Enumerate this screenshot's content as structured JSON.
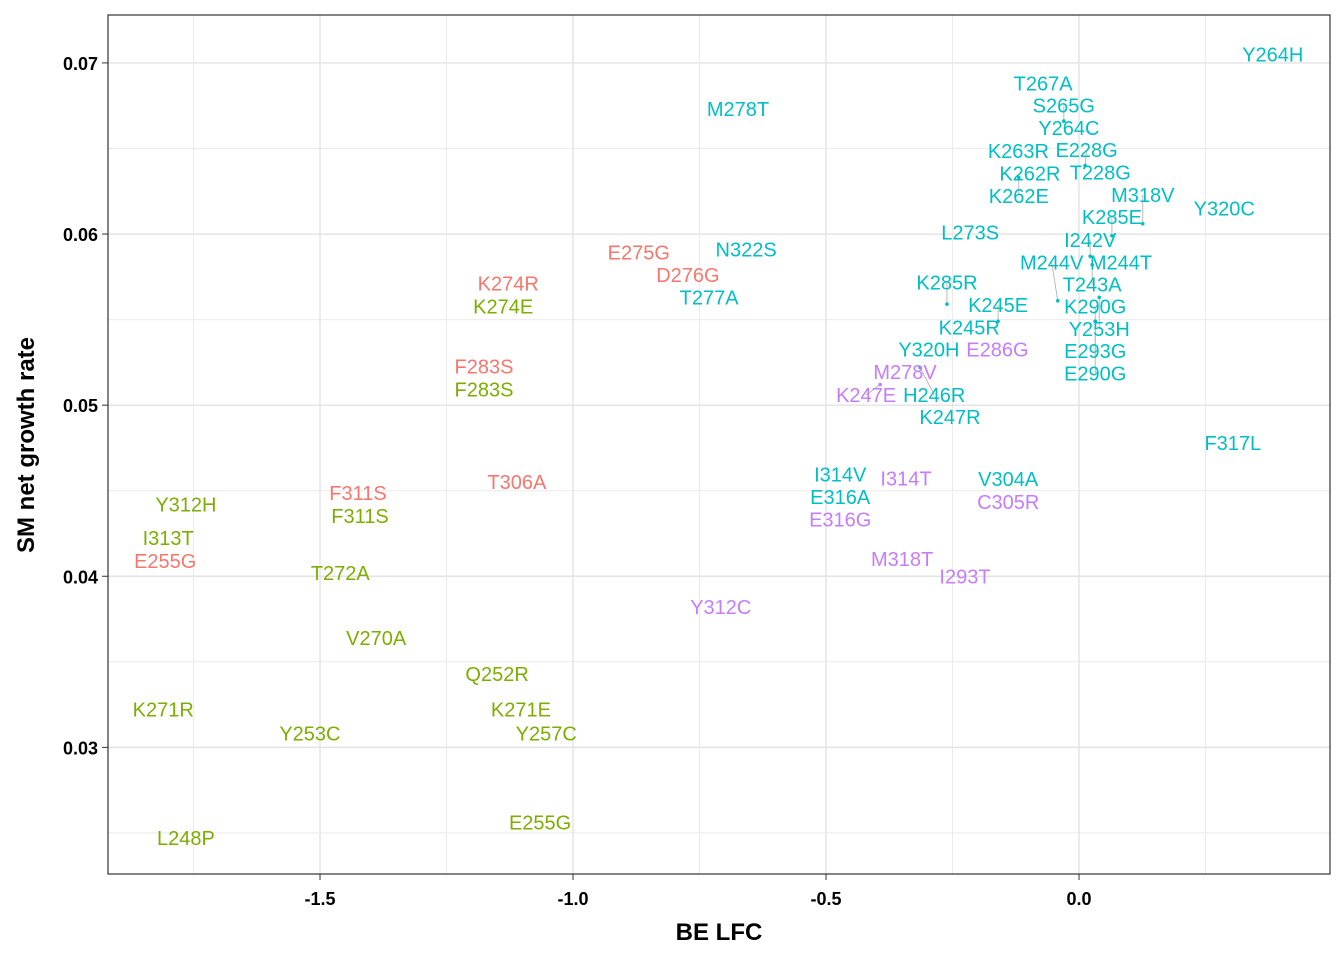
{
  "chart_data": {
    "type": "scatter",
    "marker": "text-label",
    "xlabel": "BE LFC",
    "ylabel": "SM net growth rate",
    "xlim": [
      -1.919,
      0.496
    ],
    "ylim": [
      0.0226,
      0.0728
    ],
    "xticks": [
      -1.5,
      -1.0,
      -0.5,
      0.0
    ],
    "xtick_labels": [
      "-1.5",
      "-1.0",
      "-0.5",
      "0.0"
    ],
    "yticks": [
      0.03,
      0.04,
      0.05,
      0.06,
      0.07
    ],
    "ytick_labels": [
      "0.03",
      "0.04",
      "0.05",
      "0.06",
      "0.07"
    ],
    "grid": true,
    "legend": "none",
    "group_colors": {
      "red": "#F8766D",
      "green": "#7CAE00",
      "cyan": "#00BFC4",
      "purple": "#C77CFF"
    },
    "points": [
      {
        "label": "Y264H",
        "x": 0.383,
        "y": 0.0705,
        "group": "cyan"
      },
      {
        "label": "T267A",
        "x": -0.071,
        "y": 0.0685,
        "group": "cyan"
      },
      {
        "label": "M278T",
        "x": -0.674,
        "y": 0.0673,
        "group": "cyan"
      },
      {
        "label": "S265G",
        "x": -0.03,
        "y": 0.0666,
        "group": "cyan"
      },
      {
        "label": "Y264C",
        "x": -0.02,
        "y": 0.0661,
        "group": "cyan"
      },
      {
        "label": "K263R",
        "x": -0.117,
        "y": 0.0643,
        "group": "cyan"
      },
      {
        "label": "K262R",
        "x": -0.097,
        "y": 0.0639,
        "group": "cyan"
      },
      {
        "label": "K262E",
        "x": -0.119,
        "y": 0.0633,
        "group": "cyan"
      },
      {
        "label": "E228G",
        "x": 0.012,
        "y": 0.064,
        "group": "cyan"
      },
      {
        "label": "T228G",
        "x": 0.042,
        "y": 0.0639,
        "group": "cyan"
      },
      {
        "label": "Y320C",
        "x": 0.287,
        "y": 0.0615,
        "group": "cyan"
      },
      {
        "label": "M318V",
        "x": 0.126,
        "y": 0.0606,
        "group": "cyan"
      },
      {
        "label": "K285E",
        "x": 0.065,
        "y": 0.0599,
        "group": "cyan"
      },
      {
        "label": "L273S",
        "x": -0.215,
        "y": 0.0601,
        "group": "cyan"
      },
      {
        "label": "N322S",
        "x": -0.658,
        "y": 0.0591,
        "group": "cyan"
      },
      {
        "label": "I242V",
        "x": 0.022,
        "y": 0.0587,
        "group": "cyan"
      },
      {
        "label": "T243A",
        "x": 0.026,
        "y": 0.0582,
        "group": "cyan"
      },
      {
        "label": "M244T",
        "x": 0.071,
        "y": 0.0584,
        "group": "cyan"
      },
      {
        "label": "T277A",
        "x": -0.731,
        "y": 0.0568,
        "group": "cyan"
      },
      {
        "label": "Y253H",
        "x": 0.04,
        "y": 0.0563,
        "group": "cyan"
      },
      {
        "label": "M244V",
        "x": -0.042,
        "y": 0.0561,
        "group": "cyan"
      },
      {
        "label": "K285R",
        "x": -0.261,
        "y": 0.0559,
        "group": "cyan"
      },
      {
        "label": "K245E",
        "x": -0.16,
        "y": 0.0549,
        "group": "cyan"
      },
      {
        "label": "E290G",
        "x": 0.032,
        "y": 0.0549,
        "group": "cyan"
      },
      {
        "label": "K290G",
        "x": 0.032,
        "y": 0.0549,
        "group": "cyan"
      },
      {
        "label": "E293G",
        "x": 0.032,
        "y": 0.0549,
        "group": "cyan"
      },
      {
        "label": "K245R",
        "x": -0.217,
        "y": 0.0543,
        "group": "cyan"
      },
      {
        "label": "Y320H",
        "x": -0.292,
        "y": 0.0533,
        "group": "cyan"
      },
      {
        "label": "H246R",
        "x": -0.314,
        "y": 0.0522,
        "group": "cyan"
      },
      {
        "label": "K247R",
        "x": -0.255,
        "y": 0.0494,
        "group": "cyan"
      },
      {
        "label": "F317L",
        "x": 0.304,
        "y": 0.0478,
        "group": "cyan"
      },
      {
        "label": "I314V",
        "x": -0.472,
        "y": 0.0457,
        "group": "cyan"
      },
      {
        "label": "E316A",
        "x": -0.472,
        "y": 0.0441,
        "group": "cyan"
      },
      {
        "label": "V304A",
        "x": -0.14,
        "y": 0.045,
        "group": "cyan"
      },
      {
        "label": "E286G",
        "x": -0.166,
        "y": 0.0534,
        "group": "purple"
      },
      {
        "label": "M278V",
        "x": -0.344,
        "y": 0.0519,
        "group": "purple"
      },
      {
        "label": "K247E",
        "x": -0.393,
        "y": 0.0512,
        "group": "purple"
      },
      {
        "label": "I314T",
        "x": -0.342,
        "y": 0.0457,
        "group": "purple"
      },
      {
        "label": "E316G",
        "x": -0.472,
        "y": 0.0441,
        "group": "purple"
      },
      {
        "label": "C305R",
        "x": -0.14,
        "y": 0.045,
        "group": "purple"
      },
      {
        "label": "M318T",
        "x": -0.346,
        "y": 0.041,
        "group": "purple"
      },
      {
        "label": "I293T",
        "x": -0.229,
        "y": 0.04,
        "group": "purple"
      },
      {
        "label": "Y312C",
        "x": -0.708,
        "y": 0.0382,
        "group": "purple"
      },
      {
        "label": "E275G",
        "x": -0.87,
        "y": 0.0583,
        "group": "red"
      },
      {
        "label": "D276G",
        "x": -0.773,
        "y": 0.0577,
        "group": "red"
      },
      {
        "label": "K274R",
        "x": -1.128,
        "y": 0.0568,
        "group": "red"
      },
      {
        "label": "F283S",
        "x": -1.176,
        "y": 0.0516,
        "group": "red"
      },
      {
        "label": "T306A",
        "x": -1.111,
        "y": 0.0455,
        "group": "red"
      },
      {
        "label": "F311S",
        "x": -1.425,
        "y": 0.0442,
        "group": "red"
      },
      {
        "label": "E255G",
        "x": -1.806,
        "y": 0.0415,
        "group": "red"
      },
      {
        "label": "K274E",
        "x": -1.138,
        "y": 0.0561,
        "group": "green"
      },
      {
        "label": "F283S",
        "x": -1.176,
        "y": 0.0516,
        "group": "green"
      },
      {
        "label": "Y312H",
        "x": -1.765,
        "y": 0.0442,
        "group": "green"
      },
      {
        "label": "F311S",
        "x": -1.421,
        "y": 0.0442,
        "group": "green"
      },
      {
        "label": "I313T",
        "x": -1.8,
        "y": 0.0416,
        "group": "green"
      },
      {
        "label": "T272A",
        "x": -1.46,
        "y": 0.0402,
        "group": "green"
      },
      {
        "label": "V270A",
        "x": -1.389,
        "y": 0.0364,
        "group": "green"
      },
      {
        "label": "Q252R",
        "x": -1.15,
        "y": 0.0343,
        "group": "green"
      },
      {
        "label": "K271R",
        "x": -1.81,
        "y": 0.0322,
        "group": "green"
      },
      {
        "label": "K271E",
        "x": -1.103,
        "y": 0.0322,
        "group": "green"
      },
      {
        "label": "Y253C",
        "x": -1.52,
        "y": 0.0308,
        "group": "green"
      },
      {
        "label": "Y257C",
        "x": -1.053,
        "y": 0.0308,
        "group": "green"
      },
      {
        "label": "E255G",
        "x": -1.065,
        "y": 0.0256,
        "group": "green"
      },
      {
        "label": "L248P",
        "x": -1.765,
        "y": 0.0247,
        "group": "green"
      }
    ]
  }
}
